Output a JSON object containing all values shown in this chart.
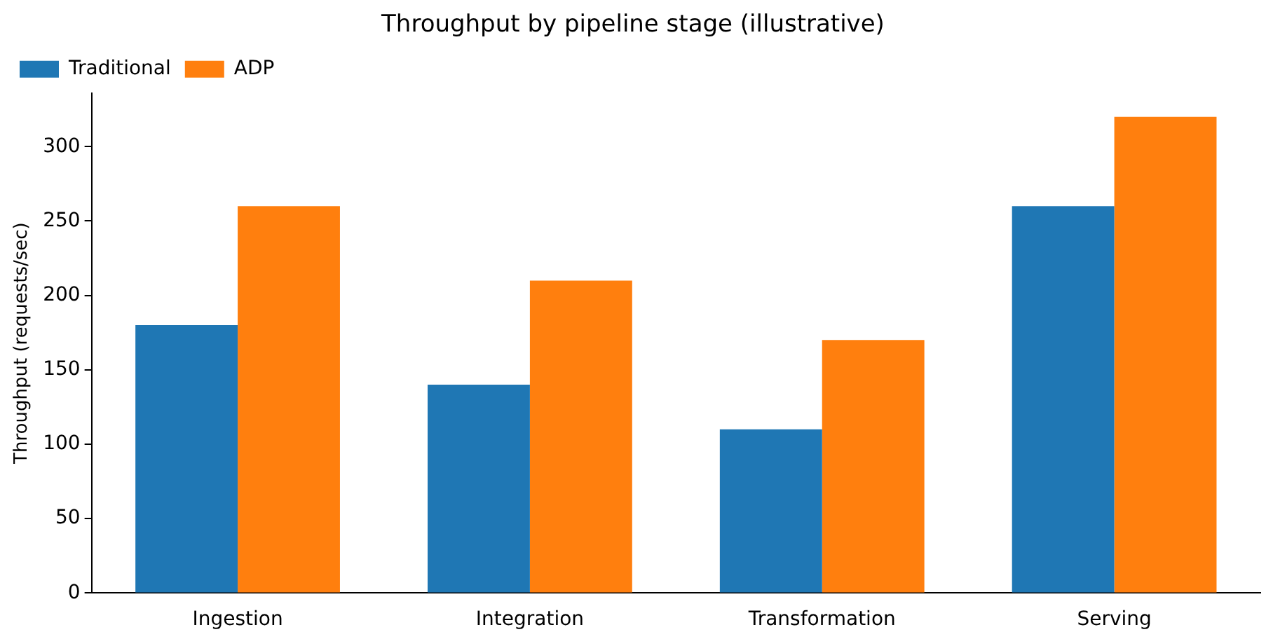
{
  "chart_data": {
    "type": "bar",
    "title": "Throughput by pipeline stage (illustrative)",
    "ylabel": "Throughput (requests/sec)",
    "categories": [
      "Ingestion",
      "Integration",
      "Transformation",
      "Serving"
    ],
    "series": [
      {
        "name": "Traditional",
        "color": "#1f77b4",
        "values": [
          180,
          140,
          110,
          260
        ]
      },
      {
        "name": "ADP",
        "color": "#ff7f0e",
        "values": [
          260,
          210,
          170,
          320
        ]
      }
    ],
    "ylim": [
      0,
      336
    ],
    "yticks": [
      0,
      50,
      100,
      150,
      200,
      250,
      300
    ],
    "grid": false,
    "legend": "top left"
  }
}
